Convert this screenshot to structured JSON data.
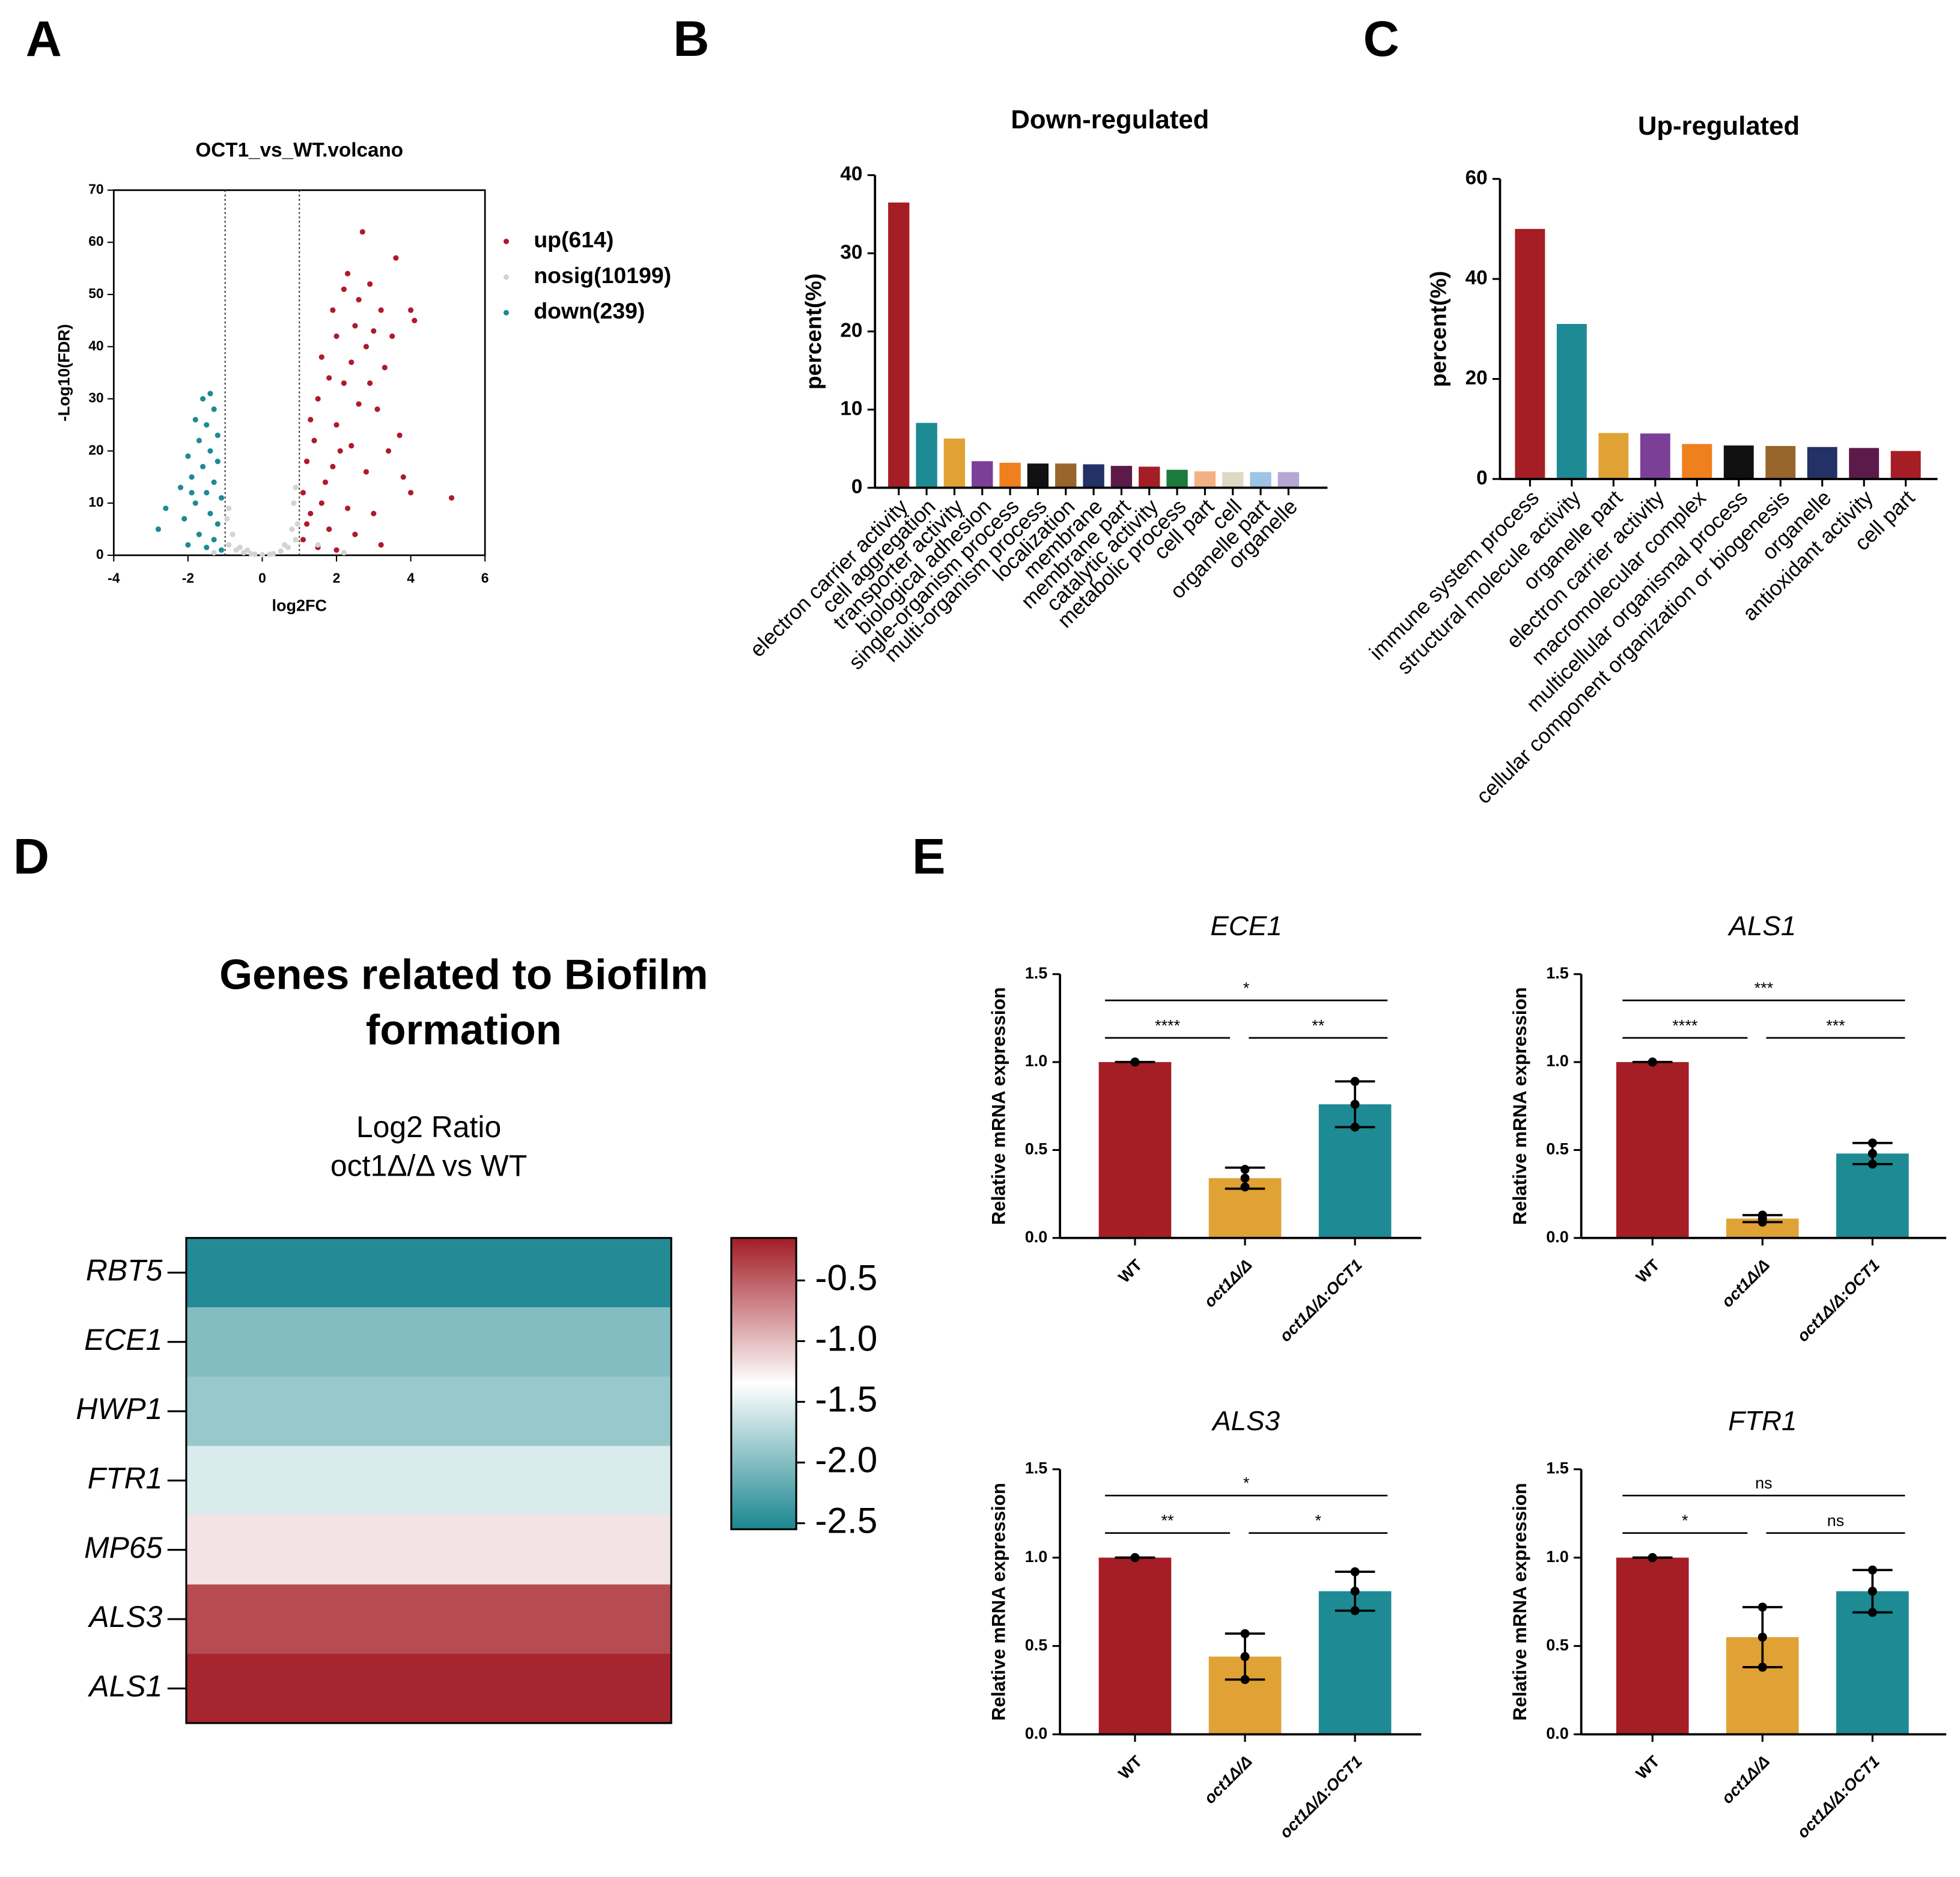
{
  "panel_labels": [
    "A",
    "B",
    "C",
    "D",
    "E"
  ],
  "chart_data": [
    {
      "type": "scatter",
      "title": "OCT1_vs_WT.volcano",
      "xlabel": "log2FC",
      "ylabel": "-Log10(FDR)",
      "xlim": [
        -4,
        6
      ],
      "xticks": [
        -4,
        -2,
        0,
        2,
        4,
        6
      ],
      "ylim": [
        0,
        70
      ],
      "yticks": [
        0,
        10,
        20,
        30,
        40,
        50,
        60,
        70
      ],
      "thresholds": [
        -1,
        1
      ],
      "series": [
        {
          "name": "up(614)",
          "color": "#b2182b",
          "x": [
            2.7,
            3.6,
            4.0,
            4.1,
            2.3,
            2.2,
            2.9,
            2.6,
            3.2,
            1.9,
            2.5,
            3.0,
            2.0,
            2.8,
            3.5,
            1.6,
            2.4,
            3.3,
            1.8,
            2.2,
            2.9,
            1.5,
            2.6,
            3.1,
            1.3,
            2.0,
            3.7,
            1.4,
            2.4,
            3.4,
            1.2,
            1.9,
            2.8,
            3.8,
            5.1,
            4.0,
            1.1,
            1.6,
            2.3,
            3.0,
            1.2,
            1.8,
            2.5,
            3.2,
            1.1,
            1.5,
            2.0,
            1.3,
            1.7,
            2.1
          ],
          "values": [
            62,
            57,
            47,
            45,
            54,
            51,
            52,
            49,
            47,
            47,
            44,
            43,
            42,
            40,
            42,
            38,
            37,
            36,
            34,
            33,
            33,
            30,
            29,
            28,
            26,
            25,
            23,
            22,
            21,
            20,
            18,
            17,
            16,
            15,
            11,
            12,
            12,
            10,
            9,
            8,
            6,
            5,
            4,
            2,
            3,
            1.5,
            1,
            8,
            14,
            20
          ]
        },
        {
          "name": "nosig(10199)",
          "color": "#d3d3d3",
          "x": [
            -0.9,
            -0.7,
            -0.5,
            -0.3,
            0,
            0.3,
            0.5,
            0.7,
            0.9,
            0.95,
            0.85,
            0.9,
            -0.8,
            -0.95,
            -0.9,
            0.2,
            -0.2,
            0.6,
            -0.6,
            1.5,
            2.2,
            -1.3,
            0.8,
            -0.4
          ],
          "values": [
            2,
            1,
            0.5,
            0.3,
            0.1,
            0.3,
            0.8,
            1.5,
            3,
            6,
            10,
            13,
            4,
            7,
            9,
            0.2,
            0.2,
            2,
            1.5,
            2,
            0.5,
            0.5,
            5,
            1
          ]
        },
        {
          "name": "down(239)",
          "color": "#1d8a94",
          "x": [
            -1.4,
            -1.6,
            -1.3,
            -1.8,
            -1.5,
            -1.2,
            -1.7,
            -1.4,
            -2.0,
            -1.2,
            -1.6,
            -1.9,
            -1.3,
            -2.2,
            -1.5,
            -1.1,
            -1.8,
            -2.6,
            -1.4,
            -2.1,
            -1.2,
            -2.8,
            -1.7,
            -1.3,
            -2.0,
            -1.1,
            -1.5,
            -1.9
          ],
          "values": [
            31,
            30,
            28,
            26,
            25,
            23,
            22,
            20,
            19,
            18,
            17,
            15,
            14,
            13,
            12,
            11,
            10,
            9,
            8,
            7,
            6,
            5,
            4,
            3,
            2,
            1,
            1.5,
            12
          ]
        }
      ]
    },
    {
      "type": "bar",
      "title": "Down-regulated",
      "ylabel": "percent(%)",
      "categories": [
        "electron carrier activity",
        "cell aggregation",
        "transporter activity",
        "biological adhesion",
        "single-organism process",
        "multi-organism process",
        "localization",
        "membrane",
        "membrane part",
        "catalytic activity",
        "metabolic process",
        "cell part",
        "cell",
        "organelle part",
        "organelle"
      ],
      "values": [
        36.5,
        8.3,
        6.3,
        3.4,
        3.2,
        3.1,
        3.1,
        3.0,
        2.8,
        2.7,
        2.3,
        2.1,
        2.0,
        2.0,
        2.0
      ],
      "colors": [
        "#a51e25",
        "#1d8a94",
        "#e0a235",
        "#7b3f98",
        "#f07f1e",
        "#111111",
        "#98652a",
        "#223166",
        "#5b1a49",
        "#a51e25",
        "#1b7a3c",
        "#f4b183",
        "#ddd9c3",
        "#9dc3e6",
        "#b4a7d6"
      ],
      "ylim": [
        0,
        40
      ],
      "yticks": [
        0,
        10,
        20,
        30,
        40
      ]
    },
    {
      "type": "bar",
      "title": "Up-regulated",
      "ylabel": "percent(%)",
      "categories": [
        "immune system process",
        "structural molecule activity",
        "organelle part",
        "electron carrier activity",
        "macromolecular complex",
        "multicellular organismal process",
        "cellular component organization or biogenesis",
        "organelle",
        "antioxidant activity",
        "cell part"
      ],
      "values": [
        50,
        31,
        9.2,
        9.1,
        7,
        6.7,
        6.6,
        6.4,
        6.2,
        5.6
      ],
      "colors": [
        "#a51e25",
        "#1d8a94",
        "#e0a235",
        "#7b3f98",
        "#f07f1e",
        "#111111",
        "#98652a",
        "#223166",
        "#5b1a49",
        "#a51e25"
      ],
      "ylim": [
        0,
        60
      ],
      "yticks": [
        0,
        20,
        40,
        60
      ]
    },
    {
      "type": "heatmap",
      "title": [
        "Genes related to Biofilm",
        "formation"
      ],
      "subtitle": [
        "Log2 Ratio",
        "oct1Δ/Δ vs WT"
      ],
      "rows": [
        "RBT5",
        "ECE1",
        "HWP1",
        "FTR1",
        "MP65",
        "ALS3",
        "ALS1"
      ],
      "values": [
        -2.5,
        -2.0,
        -1.9,
        -1.55,
        -1.2,
        -0.4,
        -0.2
      ],
      "clim": [
        -2.55,
        -0.15
      ],
      "colors": [
        "#1b868f",
        "#ffffff",
        "#a31c25"
      ],
      "colorbar_ticks": [
        -0.5,
        {
          "value": -1,
          "label": "-1.0"
        },
        -1.5,
        {
          "value": -2,
          "label": "-2.0"
        },
        -2.5
      ]
    },
    {
      "type": "bar",
      "title": "ECE1",
      "ylabel": "Relative mRNA expression",
      "categories": [
        "WT",
        "oct1Δ/Δ",
        "oct1Δ/Δ:OCT1"
      ],
      "values": [
        1,
        0.34,
        0.76
      ],
      "errors": [
        0,
        0.06,
        0.13
      ],
      "points": [
        [
          1,
          1,
          1
        ],
        [
          0.29,
          0.34,
          0.39
        ],
        [
          0.63,
          0.76,
          0.89
        ]
      ],
      "colors": [
        "#a51e25",
        "#e0a235",
        "#1d8a94"
      ],
      "ylim": [
        0,
        1.5
      ],
      "yticks": [
        {
          "value": 0,
          "label": "0.0"
        },
        0.5,
        {
          "value": 1,
          "label": "1.0"
        },
        1.5
      ],
      "comparisons": [
        {
          "groups": [
            0,
            2
          ],
          "label": "*"
        },
        {
          "groups": [
            0,
            1
          ],
          "label": "****"
        },
        {
          "groups": [
            1,
            2
          ],
          "label": "**"
        }
      ]
    },
    {
      "type": "bar",
      "title": "ALS1",
      "ylabel": "Relative mRNA expression",
      "categories": [
        "WT",
        "oct1Δ/Δ",
        "oct1Δ/Δ:OCT1"
      ],
      "values": [
        1,
        0.11,
        0.48
      ],
      "errors": [
        0,
        0.02,
        0.06
      ],
      "points": [
        [
          1,
          1,
          1
        ],
        [
          0.09,
          0.11,
          0.13
        ],
        [
          0.42,
          0.48,
          0.54
        ]
      ],
      "colors": [
        "#a51e25",
        "#e0a235",
        "#1d8a94"
      ],
      "ylim": [
        0,
        1.5
      ],
      "yticks": [
        {
          "value": 0,
          "label": "0.0"
        },
        0.5,
        {
          "value": 1,
          "label": "1.0"
        },
        1.5
      ],
      "comparisons": [
        {
          "groups": [
            0,
            2
          ],
          "label": "***"
        },
        {
          "groups": [
            0,
            1
          ],
          "label": "****"
        },
        {
          "groups": [
            1,
            2
          ],
          "label": "***"
        }
      ]
    },
    {
      "type": "bar",
      "title": "ALS3",
      "ylabel": "Relative mRNA expression",
      "categories": [
        "WT",
        "oct1Δ/Δ",
        "oct1Δ/Δ:OCT1"
      ],
      "values": [
        1,
        0.44,
        0.81
      ],
      "errors": [
        0,
        0.13,
        0.11
      ],
      "points": [
        [
          1,
          1,
          1
        ],
        [
          0.31,
          0.44,
          0.57
        ],
        [
          0.7,
          0.81,
          0.92
        ]
      ],
      "colors": [
        "#a51e25",
        "#e0a235",
        "#1d8a94"
      ],
      "ylim": [
        0,
        1.5
      ],
      "yticks": [
        {
          "value": 0,
          "label": "0.0"
        },
        0.5,
        {
          "value": 1,
          "label": "1.0"
        },
        1.5
      ],
      "comparisons": [
        {
          "groups": [
            0,
            2
          ],
          "label": "*"
        },
        {
          "groups": [
            0,
            1
          ],
          "label": "**"
        },
        {
          "groups": [
            1,
            2
          ],
          "label": "*"
        }
      ]
    },
    {
      "type": "bar",
      "title": "FTR1",
      "ylabel": "Relative mRNA expression",
      "categories": [
        "WT",
        "oct1Δ/Δ",
        "oct1Δ/Δ:OCT1"
      ],
      "values": [
        1,
        0.55,
        0.81
      ],
      "errors": [
        0,
        0.17,
        0.12
      ],
      "points": [
        [
          1,
          1,
          1
        ],
        [
          0.38,
          0.55,
          0.72
        ],
        [
          0.69,
          0.81,
          0.93
        ]
      ],
      "colors": [
        "#a51e25",
        "#e0a235",
        "#1d8a94"
      ],
      "ylim": [
        0,
        1.5
      ],
      "yticks": [
        {
          "value": 0,
          "label": "0.0"
        },
        0.5,
        {
          "value": 1,
          "label": "1.0"
        },
        1.5
      ],
      "comparisons": [
        {
          "groups": [
            0,
            2
          ],
          "label": "ns"
        },
        {
          "groups": [
            0,
            1
          ],
          "label": "*"
        },
        {
          "groups": [
            1,
            2
          ],
          "label": "ns"
        }
      ]
    }
  ]
}
